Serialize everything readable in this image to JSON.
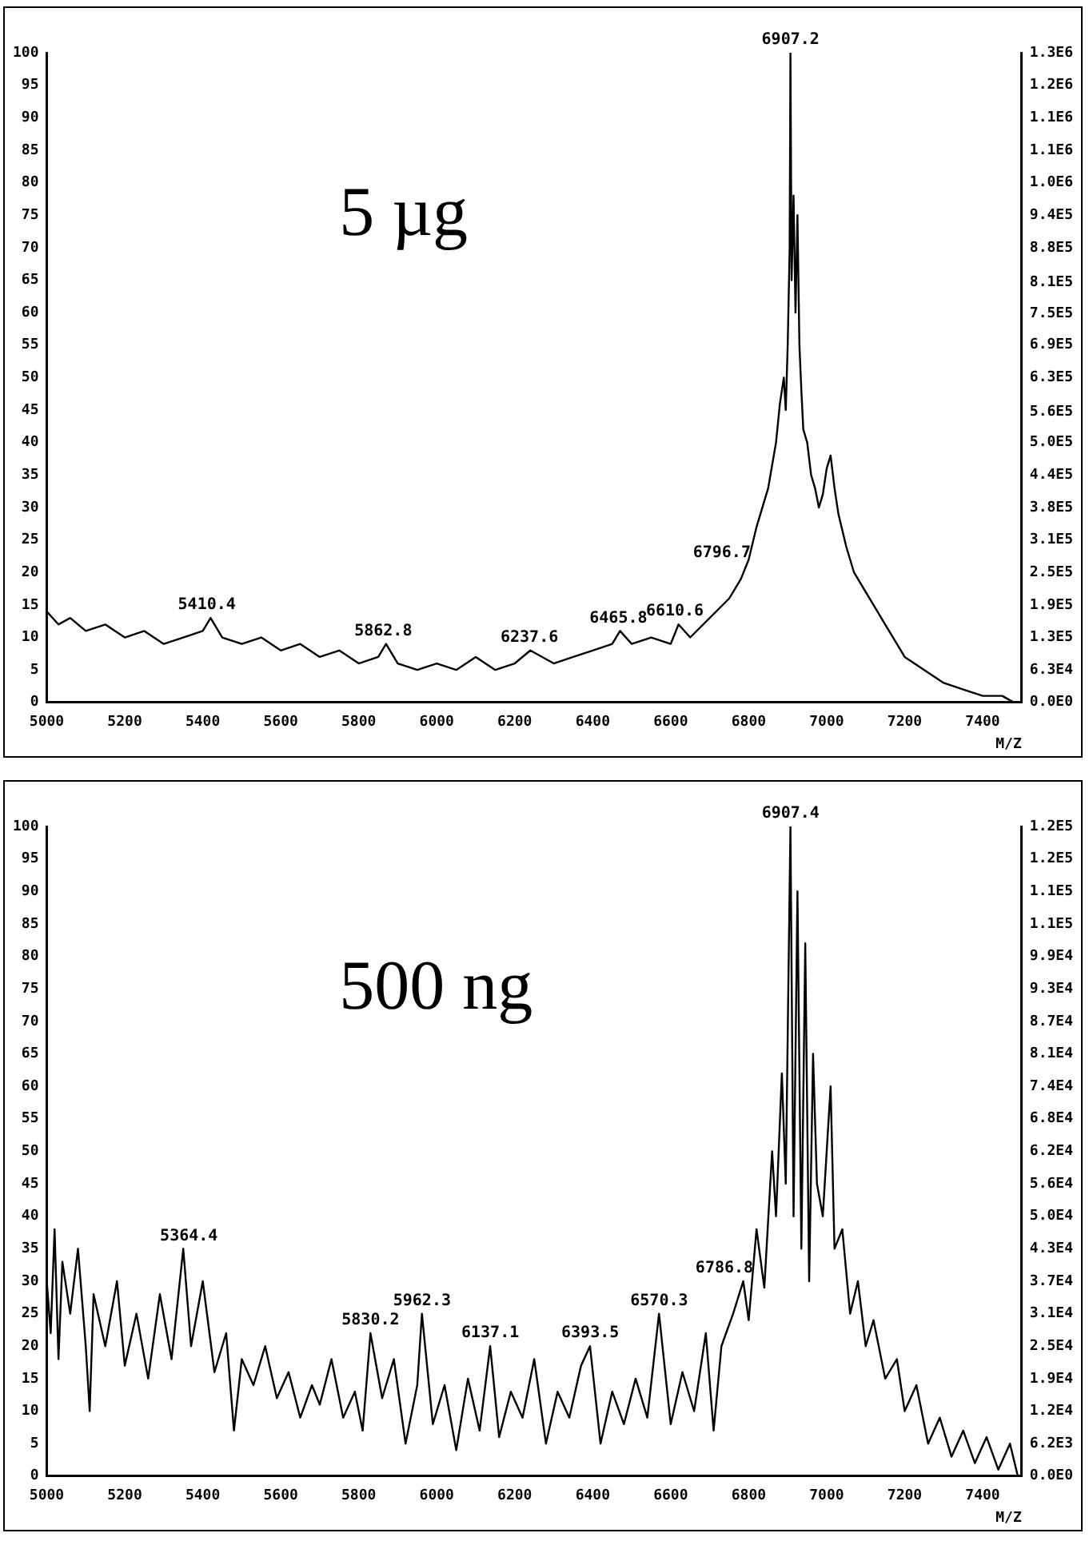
{
  "chart_data": [
    {
      "type": "line",
      "xlabel": "M/Z",
      "color": "#000000",
      "x": [
        5000,
        5030,
        5060,
        5100,
        5150,
        5200,
        5250,
        5300,
        5350,
        5400,
        5420,
        5450,
        5500,
        5550,
        5600,
        5650,
        5700,
        5750,
        5800,
        5850,
        5870,
        5900,
        5950,
        6000,
        6050,
        6100,
        6150,
        6200,
        6240,
        6300,
        6350,
        6400,
        6450,
        6470,
        6500,
        6550,
        6600,
        6620,
        6650,
        6700,
        6750,
        6780,
        6800,
        6820,
        6850,
        6870,
        6880,
        6890,
        6895,
        6900,
        6905,
        6907,
        6910,
        6915,
        6920,
        6925,
        6930,
        6935,
        6940,
        6950,
        6960,
        6970,
        6980,
        6990,
        7000,
        7010,
        7020,
        7030,
        7050,
        7070,
        7100,
        7120,
        7150,
        7180,
        7200,
        7250,
        7300,
        7350,
        7400,
        7450,
        7480
      ],
      "values": [
        14,
        12,
        13,
        11,
        12,
        10,
        11,
        9,
        10,
        11,
        13,
        10,
        9,
        10,
        8,
        9,
        7,
        8,
        6,
        7,
        9,
        6,
        5,
        6,
        5,
        7,
        5,
        6,
        8,
        6,
        7,
        8,
        9,
        11,
        9,
        10,
        9,
        12,
        10,
        13,
        16,
        19,
        22,
        27,
        33,
        40,
        46,
        50,
        45,
        55,
        70,
        100,
        65,
        78,
        60,
        75,
        55,
        48,
        42,
        40,
        35,
        33,
        30,
        32,
        36,
        38,
        33,
        29,
        24,
        20,
        17,
        15,
        12,
        9,
        7,
        5,
        3,
        2,
        1,
        1,
        0
      ],
      "xlim": [
        5000,
        7500
      ],
      "xticks": [
        5000,
        5200,
        5400,
        5600,
        5800,
        6000,
        6200,
        6400,
        6600,
        6800,
        7000,
        7200,
        7400
      ],
      "ylim": [
        0,
        100
      ],
      "yticks": [
        0,
        5,
        10,
        15,
        20,
        25,
        30,
        35,
        40,
        45,
        50,
        55,
        60,
        65,
        70,
        75,
        80,
        85,
        90,
        95,
        100
      ],
      "y2lim": [
        0,
        1260000
      ],
      "y2ticks": [
        {
          "value": 0,
          "label": "0.0E0"
        },
        {
          "value": 63000,
          "label": "6.3E4"
        },
        {
          "value": 126000,
          "label": "1.3E5"
        },
        {
          "value": 189000,
          "label": "1.9E5"
        },
        {
          "value": 252000,
          "label": "2.5E5"
        },
        {
          "value": 315000,
          "label": "3.1E5"
        },
        {
          "value": 378000,
          "label": "3.8E5"
        },
        {
          "value": 441000,
          "label": "4.4E5"
        },
        {
          "value": 504000,
          "label": "5.0E5"
        },
        {
          "value": 564000,
          "label": "5.6E5"
        },
        {
          "value": 630000,
          "label": "6.3E5"
        },
        {
          "value": 693000,
          "label": "6.9E5"
        },
        {
          "value": 754000,
          "label": "7.5E5"
        },
        {
          "value": 814000,
          "label": "8.1E5"
        },
        {
          "value": 882000,
          "label": "8.8E5"
        },
        {
          "value": 945000,
          "label": "9.4E5"
        },
        {
          "value": 1008000,
          "label": "1.0E6"
        },
        {
          "value": 1071000,
          "label": "1.1E6"
        },
        {
          "value": 1134000,
          "label": "1.1E6"
        },
        {
          "value": 1197000,
          "label": "1.2E6"
        },
        {
          "value": 1260000,
          "label": "1.3E6"
        }
      ],
      "annotations": [
        "5 µg",
        {
          "text": "6907.2",
          "x": 6907.2,
          "y": 100
        },
        {
          "text": "5410.4",
          "x": 5410.4,
          "y": 13
        },
        {
          "text": "5862.8",
          "x": 5862.8,
          "y": 9
        },
        {
          "text": "6237.6",
          "x": 6237.6,
          "y": 8
        },
        {
          "text": "6465.8",
          "x": 6465.8,
          "y": 11
        },
        {
          "text": "6610.6",
          "x": 6610.6,
          "y": 12
        },
        {
          "text": "6796.7",
          "x": 6796.7,
          "y": 21
        }
      ]
    },
    {
      "type": "line",
      "xlabel": "M/Z",
      "color": "#000000",
      "x": [
        5000,
        5010,
        5020,
        5030,
        5040,
        5060,
        5080,
        5100,
        5110,
        5120,
        5150,
        5180,
        5200,
        5230,
        5260,
        5290,
        5320,
        5350,
        5370,
        5400,
        5430,
        5460,
        5480,
        5500,
        5530,
        5560,
        5590,
        5620,
        5650,
        5680,
        5700,
        5730,
        5760,
        5790,
        5810,
        5830,
        5860,
        5890,
        5920,
        5950,
        5962,
        5990,
        6020,
        6050,
        6080,
        6110,
        6137,
        6160,
        6190,
        6220,
        6250,
        6280,
        6310,
        6340,
        6370,
        6393,
        6420,
        6450,
        6480,
        6510,
        6540,
        6570,
        6600,
        6630,
        6660,
        6690,
        6710,
        6730,
        6760,
        6786,
        6800,
        6820,
        6840,
        6860,
        6870,
        6885,
        6895,
        6907,
        6915,
        6925,
        6935,
        6945,
        6955,
        6965,
        6975,
        6990,
        7010,
        7020,
        7040,
        7060,
        7080,
        7100,
        7120,
        7150,
        7180,
        7200,
        7230,
        7260,
        7290,
        7320,
        7350,
        7380,
        7410,
        7440,
        7470,
        7490
      ],
      "values": [
        30,
        22,
        38,
        18,
        33,
        25,
        35,
        20,
        10,
        28,
        20,
        30,
        17,
        25,
        15,
        28,
        18,
        35,
        20,
        30,
        16,
        22,
        7,
        18,
        14,
        20,
        12,
        16,
        9,
        14,
        11,
        18,
        9,
        13,
        7,
        22,
        12,
        18,
        5,
        14,
        25,
        8,
        14,
        4,
        15,
        7,
        20,
        6,
        13,
        9,
        18,
        5,
        13,
        9,
        17,
        20,
        5,
        13,
        8,
        15,
        9,
        25,
        8,
        16,
        10,
        22,
        7,
        20,
        25,
        30,
        24,
        38,
        29,
        50,
        40,
        62,
        45,
        100,
        40,
        90,
        35,
        82,
        30,
        65,
        45,
        40,
        60,
        35,
        38,
        25,
        30,
        20,
        24,
        15,
        18,
        10,
        14,
        5,
        9,
        3,
        7,
        2,
        6,
        1,
        5,
        0
      ],
      "xlim": [
        5000,
        7500
      ],
      "xticks": [
        5000,
        5200,
        5400,
        5600,
        5800,
        6000,
        6200,
        6400,
        6600,
        6800,
        7000,
        7200,
        7400
      ],
      "ylim": [
        0,
        100
      ],
      "yticks": [
        0,
        5,
        10,
        15,
        20,
        25,
        30,
        35,
        40,
        45,
        50,
        55,
        60,
        65,
        70,
        75,
        80,
        85,
        90,
        95,
        100
      ],
      "y2lim": [
        0,
        124000
      ],
      "y2ticks": [
        {
          "value": 0,
          "label": "0.0E0"
        },
        {
          "value": 6200,
          "label": "6.2E3"
        },
        {
          "value": 12400,
          "label": "1.2E4"
        },
        {
          "value": 18600,
          "label": "1.9E4"
        },
        {
          "value": 24800,
          "label": "2.5E4"
        },
        {
          "value": 31000,
          "label": "3.1E4"
        },
        {
          "value": 37200,
          "label": "3.7E4"
        },
        {
          "value": 43400,
          "label": "4.3E4"
        },
        {
          "value": 49600,
          "label": "5.0E4"
        },
        {
          "value": 55800,
          "label": "5.6E4"
        },
        {
          "value": 62000,
          "label": "6.2E4"
        },
        {
          "value": 68200,
          "label": "6.8E4"
        },
        {
          "value": 74400,
          "label": "7.4E4"
        },
        {
          "value": 80600,
          "label": "8.1E4"
        },
        {
          "value": 86800,
          "label": "8.7E4"
        },
        {
          "value": 93000,
          "label": "9.3E4"
        },
        {
          "value": 99200,
          "label": "9.9E4"
        },
        {
          "value": 105400,
          "label": "1.1E5"
        },
        {
          "value": 111600,
          "label": "1.1E5"
        },
        {
          "value": 117800,
          "label": "1.2E5"
        },
        {
          "value": 124000,
          "label": "1.2E5"
        }
      ],
      "annotations": [
        "500 ng",
        {
          "text": "6907.4",
          "x": 6907.4,
          "y": 100
        },
        {
          "text": "5364.4",
          "x": 5364.4,
          "y": 35
        },
        {
          "text": "5830.2",
          "x": 5830.2,
          "y": 22
        },
        {
          "text": "5962.3",
          "x": 5962.3,
          "y": 25
        },
        {
          "text": "6137.1",
          "x": 6137.1,
          "y": 20
        },
        {
          "text": "6393.5",
          "x": 6393.5,
          "y": 20
        },
        {
          "text": "6570.3",
          "x": 6570.3,
          "y": 25
        },
        {
          "text": "6786.8",
          "x": 6786.8,
          "y": 30
        }
      ]
    }
  ]
}
